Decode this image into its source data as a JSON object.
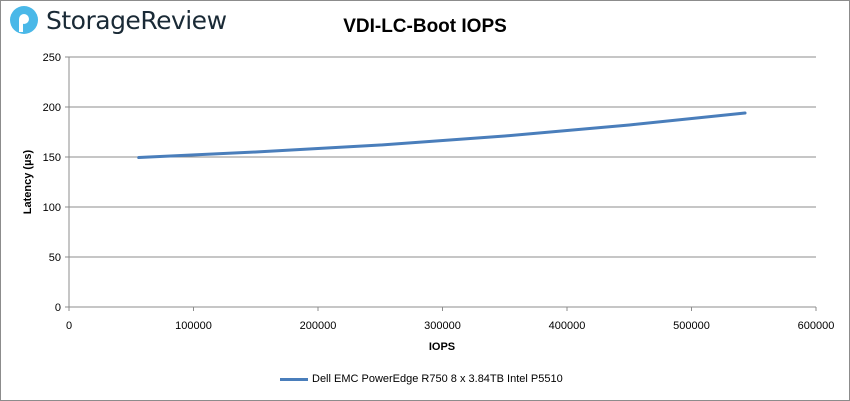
{
  "logo": {
    "text": "StorageReview",
    "color": "#4ab8e8"
  },
  "chart_data": {
    "type": "line",
    "title": "VDI-LC-Boot IOPS",
    "xlabel": "IOPS",
    "ylabel": "Latency (µs)",
    "xlim": [
      0,
      600000
    ],
    "ylim": [
      0,
      250
    ],
    "xticks": [
      0,
      100000,
      200000,
      300000,
      400000,
      500000,
      600000
    ],
    "yticks": [
      0,
      50,
      100,
      150,
      200,
      250
    ],
    "grid": "horizontal",
    "legend": "bottom",
    "series": [
      {
        "name": "Dell EMC PowerEdge R750 8 x 3.84TB Intel P5510",
        "color": "#4a7ebb",
        "x": [
          56000,
          150000,
          250000,
          350000,
          450000,
          543000
        ],
        "y": [
          149.5,
          155,
          162,
          171,
          182,
          194
        ]
      }
    ]
  }
}
